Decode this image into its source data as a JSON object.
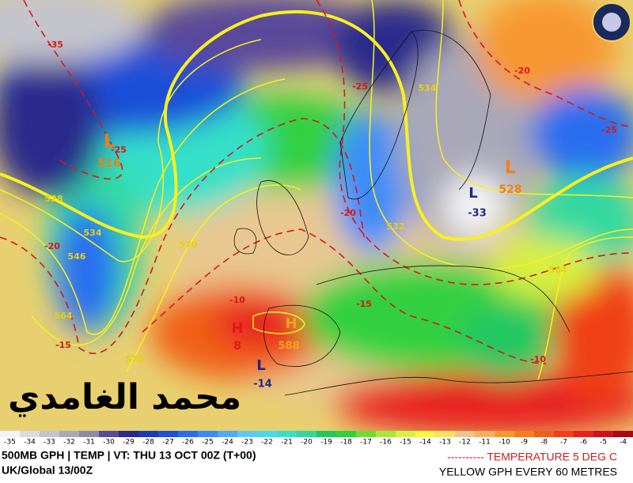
{
  "map_labels": [
    "L",
    "516",
    "L",
    "528",
    "L",
    "-33",
    "H",
    "8",
    "H",
    "588",
    "L",
    "-14"
  ],
  "contour_labels": [
    "528",
    "534",
    "546",
    "564",
    "570",
    "576",
    "532",
    "534",
    "564",
    "-35",
    "-25",
    "-20",
    "-15",
    "-10",
    "-15",
    "-10",
    "-20",
    "-25",
    "-25",
    "-20"
  ],
  "signature": "محمد الغامدي",
  "scale": [
    {
      "value": -35,
      "color": "#f4f4f4"
    },
    {
      "value": -34,
      "color": "#dcdcdc"
    },
    {
      "value": -33,
      "color": "#c4c4cc"
    },
    {
      "value": -32,
      "color": "#a8a8b8"
    },
    {
      "value": -31,
      "color": "#8c8ca8"
    },
    {
      "value": -30,
      "color": "#5a4a9a"
    },
    {
      "value": -29,
      "color": "#2a2a8c"
    },
    {
      "value": -28,
      "color": "#1a3cb4"
    },
    {
      "value": -27,
      "color": "#1e50d8"
    },
    {
      "value": -26,
      "color": "#2a6ef0"
    },
    {
      "value": -25,
      "color": "#3c8cf8"
    },
    {
      "value": -24,
      "color": "#50aaf8"
    },
    {
      "value": -23,
      "color": "#5cc8f4"
    },
    {
      "value": -22,
      "color": "#44dcec"
    },
    {
      "value": -21,
      "color": "#34e0c8"
    },
    {
      "value": -20,
      "color": "#30d8a0"
    },
    {
      "value": -19,
      "color": "#20c860"
    },
    {
      "value": -18,
      "color": "#30d040"
    },
    {
      "value": -17,
      "color": "#70dc30"
    },
    {
      "value": -16,
      "color": "#a8e83c"
    },
    {
      "value": -15,
      "color": "#d8f040"
    },
    {
      "value": -14,
      "color": "#f8f840"
    },
    {
      "value": -13,
      "color": "#f8e060"
    },
    {
      "value": -12,
      "color": "#e8c890"
    },
    {
      "value": -11,
      "color": "#f8b060"
    },
    {
      "value": -10,
      "color": "#f89830"
    },
    {
      "value": -9,
      "color": "#f87c20"
    },
    {
      "value": -8,
      "color": "#f06018"
    },
    {
      "value": -7,
      "color": "#f04018"
    },
    {
      "value": -6,
      "color": "#e82020"
    },
    {
      "value": -5,
      "color": "#d01020"
    },
    {
      "value": -4,
      "color": "#a80818"
    }
  ],
  "footer": {
    "title": "500MB GPH | TEMP |  VT: THU 13 OCT 00Z (T+00)",
    "model": "UK/Global 13/00Z",
    "legend_temp": "---------- TEMPERATURE 5 DEG C",
    "legend_gph": "YELLOW GPH EVERY 60 METRES"
  }
}
